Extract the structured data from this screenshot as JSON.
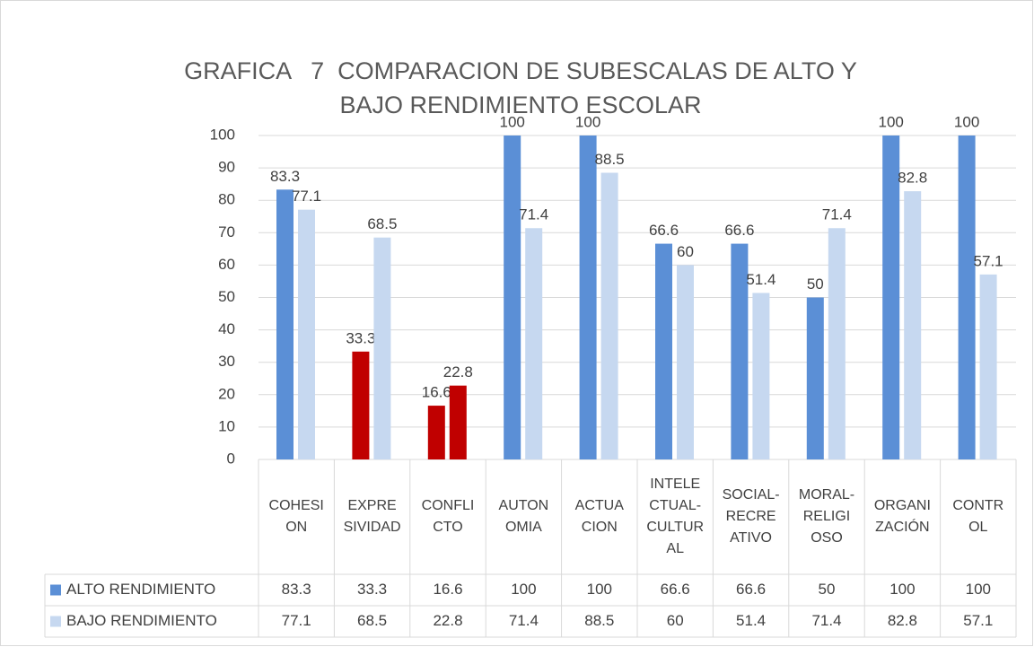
{
  "chart_data": {
    "type": "bar",
    "title": "GRAFICA   7  COMPARACION DE SUBESCALAS DE ALTO Y BAJO RENDIMIENTO ESCOLAR",
    "categories": [
      "COHESION",
      "EXPRESIVIDAD",
      "CONFLICTO",
      "AUTONOMIA",
      "ACTUACION",
      "INTELECTUAL-CULTURAL",
      "SOCIAL-RECREATIVO",
      "MORAL-RELIGIOSO",
      "ORGANIZACIÓN",
      "CONTROL"
    ],
    "series": [
      {
        "name": "ALTO RENDIMIENTO",
        "color": "#5b8fd6",
        "colors": [
          "#5b8fd6",
          "#c00000",
          "#c00000",
          "#5b8fd6",
          "#5b8fd6",
          "#5b8fd6",
          "#5b8fd6",
          "#5b8fd6",
          "#5b8fd6",
          "#5b8fd6"
        ],
        "values": [
          83.3,
          33.3,
          16.6,
          100,
          100,
          66.6,
          66.6,
          50,
          100,
          100
        ]
      },
      {
        "name": "BAJO RENDIMIENTO",
        "color": "#c6d8f0",
        "colors": [
          "#c6d8f0",
          "#c6d8f0",
          "#c00000",
          "#c6d8f0",
          "#c6d8f0",
          "#c6d8f0",
          "#c6d8f0",
          "#c6d8f0",
          "#c6d8f0",
          "#c6d8f0"
        ],
        "values": [
          77.1,
          68.5,
          22.8,
          71.4,
          88.5,
          60,
          51.4,
          71.4,
          82.8,
          57.1
        ]
      }
    ],
    "ylim": [
      0,
      100
    ],
    "yticks": [
      0,
      10,
      20,
      30,
      40,
      50,
      60,
      70,
      80,
      90,
      100
    ],
    "grid": true,
    "data_table": true
  }
}
